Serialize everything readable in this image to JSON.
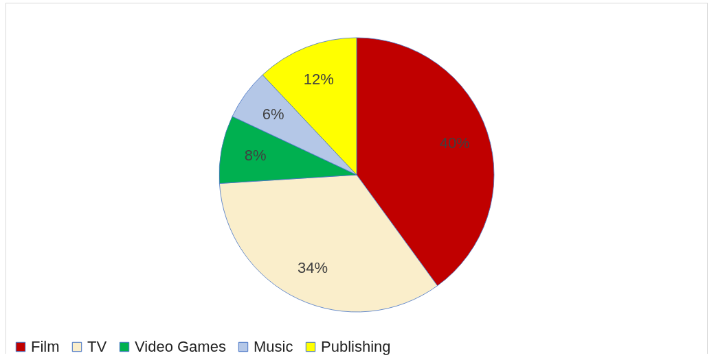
{
  "chart_data": {
    "type": "pie",
    "categories": [
      "Film",
      "TV",
      "Video Games",
      "Music",
      "Publishing"
    ],
    "values": [
      40,
      34,
      8,
      6,
      12
    ],
    "colors": [
      "#c00000",
      "#faeecb",
      "#00b050",
      "#b4c7e7",
      "#ffff00"
    ],
    "value_labels": [
      "40%",
      "34%",
      "8%",
      "6%",
      "12%"
    ],
    "legend": "bottom"
  }
}
